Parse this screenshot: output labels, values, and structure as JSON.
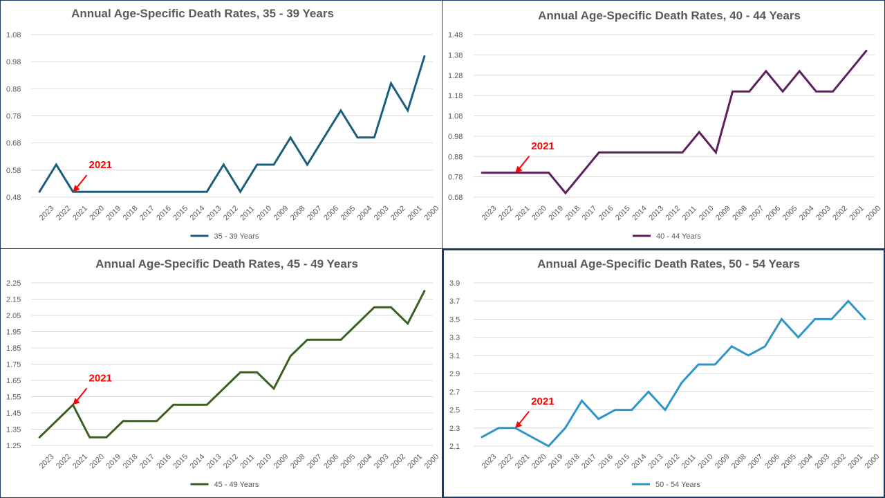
{
  "chart_data": [
    {
      "type": "line",
      "title": "Annual Age-Specific Death Rates, 35 - 39 Years",
      "categories": [
        "2023",
        "2022",
        "2021",
        "2020",
        "2019",
        "2018",
        "2017",
        "2016",
        "2015",
        "2014",
        "2013",
        "2012",
        "2011",
        "2010",
        "2009",
        "2008",
        "2007",
        "2006",
        "2005",
        "2004",
        "2003",
        "2002",
        "2001",
        "2000"
      ],
      "series": [
        {
          "name": "35 - 39 Years",
          "color": "#1b5e7b",
          "values": [
            0.5,
            0.6,
            0.5,
            0.5,
            0.5,
            0.5,
            0.5,
            0.5,
            0.5,
            0.5,
            0.5,
            0.6,
            0.5,
            0.6,
            0.6,
            0.7,
            0.6,
            0.7,
            0.8,
            0.7,
            0.7,
            0.9,
            0.8,
            1.0
          ]
        }
      ],
      "ylim": [
        0.48,
        1.08
      ],
      "yticks": [
        "0.48",
        "0.58",
        "0.68",
        "0.78",
        "0.88",
        "0.98",
        "1.08"
      ],
      "annotation": {
        "label": "2021",
        "category": "2021",
        "value": 0.5
      },
      "legend": "bottom",
      "grid": true
    },
    {
      "type": "line",
      "title": "Annual Age-Specific Death Rates, 40 - 44 Years",
      "categories": [
        "2023",
        "2022",
        "2021",
        "2020",
        "2019",
        "2018",
        "2017",
        "2016",
        "2015",
        "2014",
        "2013",
        "2012",
        "2011",
        "2010",
        "2009",
        "2008",
        "2007",
        "2006",
        "2005",
        "2004",
        "2003",
        "2002",
        "2001",
        "2000"
      ],
      "series": [
        {
          "name": "40 - 44 Years",
          "color": "#5c1f5c",
          "values": [
            0.8,
            0.8,
            0.8,
            0.8,
            0.8,
            0.7,
            0.8,
            0.9,
            0.9,
            0.9,
            0.9,
            0.9,
            0.9,
            1.0,
            0.9,
            1.2,
            1.2,
            1.3,
            1.2,
            1.3,
            1.2,
            1.2,
            1.3,
            1.4
          ]
        }
      ],
      "ylim": [
        0.68,
        1.48
      ],
      "yticks": [
        "0.68",
        "0.78",
        "0.88",
        "0.98",
        "1.08",
        "1.18",
        "1.28",
        "1.38",
        "1.48"
      ],
      "annotation": {
        "label": "2021",
        "category": "2021",
        "value": 0.8
      },
      "legend": "bottom",
      "grid": true
    },
    {
      "type": "line",
      "title": "Annual Age-Specific Death Rates, 45 - 49 Years",
      "categories": [
        "2023",
        "2022",
        "2021",
        "2020",
        "2019",
        "2018",
        "2017",
        "2016",
        "2015",
        "2014",
        "2013",
        "2012",
        "2011",
        "2010",
        "2009",
        "2008",
        "2007",
        "2006",
        "2005",
        "2004",
        "2003",
        "2002",
        "2001",
        "2000"
      ],
      "series": [
        {
          "name": "45 - 49 Years",
          "color": "#3a5f1e",
          "values": [
            1.3,
            1.4,
            1.5,
            1.3,
            1.3,
            1.4,
            1.4,
            1.4,
            1.5,
            1.5,
            1.5,
            1.6,
            1.7,
            1.7,
            1.6,
            1.8,
            1.9,
            1.9,
            1.9,
            2.0,
            2.1,
            2.1,
            2.0,
            2.2
          ]
        }
      ],
      "ylim": [
        1.25,
        2.25
      ],
      "yticks": [
        "1.25",
        "1.35",
        "1.45",
        "1.55",
        "1.65",
        "1.75",
        "1.85",
        "1.95",
        "2.05",
        "2.15",
        "2.25"
      ],
      "annotation": {
        "label": "2021",
        "category": "2021",
        "value": 1.5
      },
      "legend": "bottom",
      "grid": true
    },
    {
      "type": "line",
      "title": "Annual Age-Specific Death Rates, 50 - 54 Years",
      "categories": [
        "2023",
        "2022",
        "2021",
        "2020",
        "2019",
        "2018",
        "2017",
        "2016",
        "2015",
        "2014",
        "2013",
        "2012",
        "2011",
        "2010",
        "2009",
        "2008",
        "2007",
        "2006",
        "2005",
        "2004",
        "2003",
        "2002",
        "2001",
        "2000"
      ],
      "series": [
        {
          "name": "50 - 54 Years",
          "color": "#2e95c8",
          "values": [
            2.2,
            2.3,
            2.3,
            2.2,
            2.1,
            2.3,
            2.6,
            2.4,
            2.5,
            2.5,
            2.7,
            2.5,
            2.8,
            3.0,
            3.0,
            3.2,
            3.1,
            3.2,
            3.5,
            3.3,
            3.5,
            3.5,
            3.7,
            3.5
          ]
        }
      ],
      "ylim": [
        2.1,
        3.9
      ],
      "yticks": [
        "2.1",
        "2.3",
        "2.5",
        "2.7",
        "2.9",
        "3.1",
        "3.3",
        "3.5",
        "3.7",
        "3.9"
      ],
      "annotation": {
        "label": "2021",
        "category": "2021",
        "value": 2.3
      },
      "legend": "bottom",
      "grid": true
    }
  ]
}
